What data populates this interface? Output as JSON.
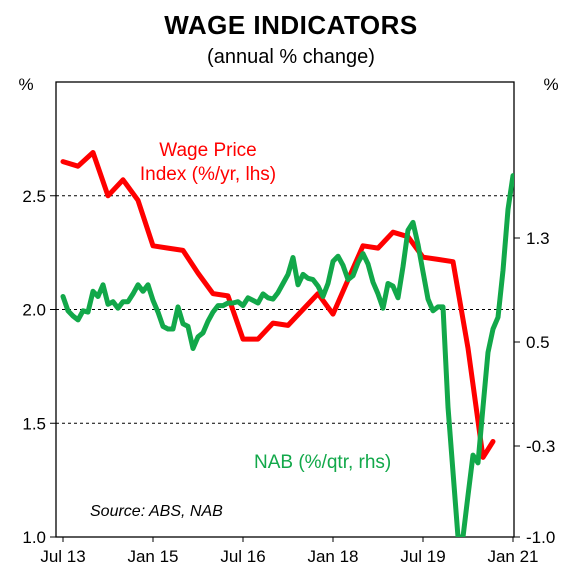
{
  "chart_data": {
    "type": "line",
    "title": "WAGE INDICATORS",
    "subtitle": "(annual % change)",
    "unit_left": "%",
    "unit_right": "%",
    "source": "Source: ABS, NAB",
    "x_tick_labels": [
      "Jul 13",
      "Jan 15",
      "Jul 16",
      "Jan 18",
      "Jul 19",
      "Jan 21"
    ],
    "left_axis": {
      "ylim": [
        1.0,
        3.0
      ],
      "ticks": [
        1.0,
        1.5,
        2.0,
        2.5
      ]
    },
    "right_axis": {
      "ylim": [
        -1.0,
        2.5
      ],
      "ticks": [
        -1.0,
        -0.3,
        0.5,
        1.3
      ]
    },
    "grid": "horizontal dashed",
    "series": [
      {
        "name": "Wage Price Index (%/yr, lhs)",
        "label_lines": [
          "Wage Price",
          "Index (%/yr, lhs)"
        ],
        "axis": "left",
        "color": "#ff0000",
        "points": [
          [
            "Jul 13",
            2.65
          ],
          [
            "Oct 13",
            2.63
          ],
          [
            "Jan 14",
            2.69
          ],
          [
            "Apr 14",
            2.5
          ],
          [
            "Jul 14",
            2.57
          ],
          [
            "Oct 14",
            2.48
          ],
          [
            "Jan 15",
            2.28
          ],
          [
            "Apr 15",
            2.27
          ],
          [
            "Jul 15",
            2.26
          ],
          [
            "Oct 15",
            2.16
          ],
          [
            "Jan 16",
            2.07
          ],
          [
            "Apr 16",
            2.06
          ],
          [
            "Jul 16",
            1.87
          ],
          [
            "Oct 16",
            1.87
          ],
          [
            "Jan 17",
            1.94
          ],
          [
            "Apr 17",
            1.93
          ],
          [
            "Jul 17",
            2.0
          ],
          [
            "Oct 17",
            2.07
          ],
          [
            "Jan 18",
            1.98
          ],
          [
            "Apr 18",
            2.13
          ],
          [
            "Jul 18",
            2.28
          ],
          [
            "Oct 18",
            2.27
          ],
          [
            "Jan 19",
            2.34
          ],
          [
            "Apr 19",
            2.32
          ],
          [
            "Jul 19",
            2.23
          ],
          [
            "Oct 19",
            2.22
          ],
          [
            "Jan 20",
            2.21
          ],
          [
            "Apr 20",
            1.83
          ],
          [
            "Jul 20",
            1.35
          ],
          [
            "Sep 20",
            1.42
          ]
        ]
      },
      {
        "name": "NAB (%/qtr, rhs)",
        "axis": "right",
        "color": "#12a84a",
        "points": [
          [
            "Jul 13",
            0.85
          ],
          [
            "Aug 13",
            0.74
          ],
          [
            "Sep 13",
            0.7
          ],
          [
            "Oct 13",
            0.67
          ],
          [
            "Nov 13",
            0.74
          ],
          [
            "Dec 13",
            0.73
          ],
          [
            "Jan 14",
            0.89
          ],
          [
            "Feb 14",
            0.85
          ],
          [
            "Mar 14",
            0.94
          ],
          [
            "Apr 14",
            0.79
          ],
          [
            "May 14",
            0.81
          ],
          [
            "Jun 14",
            0.76
          ],
          [
            "Jul 14",
            0.81
          ],
          [
            "Aug 14",
            0.81
          ],
          [
            "Sep 14",
            0.87
          ],
          [
            "Oct 14",
            0.94
          ],
          [
            "Nov 14",
            0.89
          ],
          [
            "Dec 14",
            0.94
          ],
          [
            "Jan 15",
            0.82
          ],
          [
            "Feb 15",
            0.73
          ],
          [
            "Mar 15",
            0.62
          ],
          [
            "Apr 15",
            0.6
          ],
          [
            "May 15",
            0.6
          ],
          [
            "Jun 15",
            0.77
          ],
          [
            "Jul 15",
            0.64
          ],
          [
            "Aug 15",
            0.62
          ],
          [
            "Sep 15",
            0.45
          ],
          [
            "Oct 15",
            0.54
          ],
          [
            "Nov 15",
            0.57
          ],
          [
            "Dec 15",
            0.66
          ],
          [
            "Jan 16",
            0.73
          ],
          [
            "Feb 16",
            0.78
          ],
          [
            "Mar 16",
            0.78
          ],
          [
            "Apr 16",
            0.8
          ],
          [
            "May 16",
            0.8
          ],
          [
            "Jun 16",
            0.81
          ],
          [
            "Jul 16",
            0.78
          ],
          [
            "Aug 16",
            0.84
          ],
          [
            "Sep 16",
            0.82
          ],
          [
            "Oct 16",
            0.8
          ],
          [
            "Nov 16",
            0.87
          ],
          [
            "Dec 16",
            0.84
          ],
          [
            "Jan 17",
            0.83
          ],
          [
            "Feb 17",
            0.88
          ],
          [
            "Mar 17",
            0.95
          ],
          [
            "Apr 17",
            1.02
          ],
          [
            "May 17",
            1.15
          ],
          [
            "Jun 17",
            0.94
          ],
          [
            "Jul 17",
            1.02
          ],
          [
            "Aug 17",
            0.99
          ],
          [
            "Sep 17",
            0.98
          ],
          [
            "Oct 17",
            0.93
          ],
          [
            "Nov 17",
            0.85
          ],
          [
            "Dec 17",
            0.95
          ],
          [
            "Jan 18",
            1.12
          ],
          [
            "Feb 18",
            1.16
          ],
          [
            "Mar 18",
            1.09
          ],
          [
            "Apr 18",
            0.98
          ],
          [
            "May 18",
            1.01
          ],
          [
            "Jun 18",
            1.11
          ],
          [
            "Jul 18",
            1.18
          ],
          [
            "Aug 18",
            1.1
          ],
          [
            "Sep 18",
            0.96
          ],
          [
            "Oct 18",
            0.87
          ],
          [
            "Nov 18",
            0.76
          ],
          [
            "Dec 18",
            0.95
          ],
          [
            "Jan 19",
            0.93
          ],
          [
            "Feb 19",
            0.84
          ],
          [
            "Mar 19",
            1.08
          ],
          [
            "Apr 19",
            1.36
          ],
          [
            "May 19",
            1.42
          ],
          [
            "Jun 19",
            1.25
          ],
          [
            "Jul 19",
            1.04
          ],
          [
            "Aug 19",
            0.83
          ],
          [
            "Sep 19",
            0.74
          ],
          [
            "Oct 19",
            0.77
          ],
          [
            "Nov 19",
            0.77
          ],
          [
            "Dec 19",
            0.0
          ],
          [
            "Jan 20",
            -0.5
          ],
          [
            "Feb 20",
            -1.0
          ],
          [
            "Mar 20",
            -1.0
          ],
          [
            "Apr 20",
            -0.68
          ],
          [
            "May 20",
            -0.37
          ],
          [
            "Jun 20",
            -0.43
          ],
          [
            "Jul 20",
            0.0
          ],
          [
            "Aug 20",
            0.42
          ],
          [
            "Sep 20",
            0.6
          ],
          [
            "Oct 20",
            0.69
          ],
          [
            "Nov 20",
            1.05
          ],
          [
            "Dec 20",
            1.52
          ],
          [
            "Jan 21",
            1.78
          ]
        ]
      }
    ]
  }
}
